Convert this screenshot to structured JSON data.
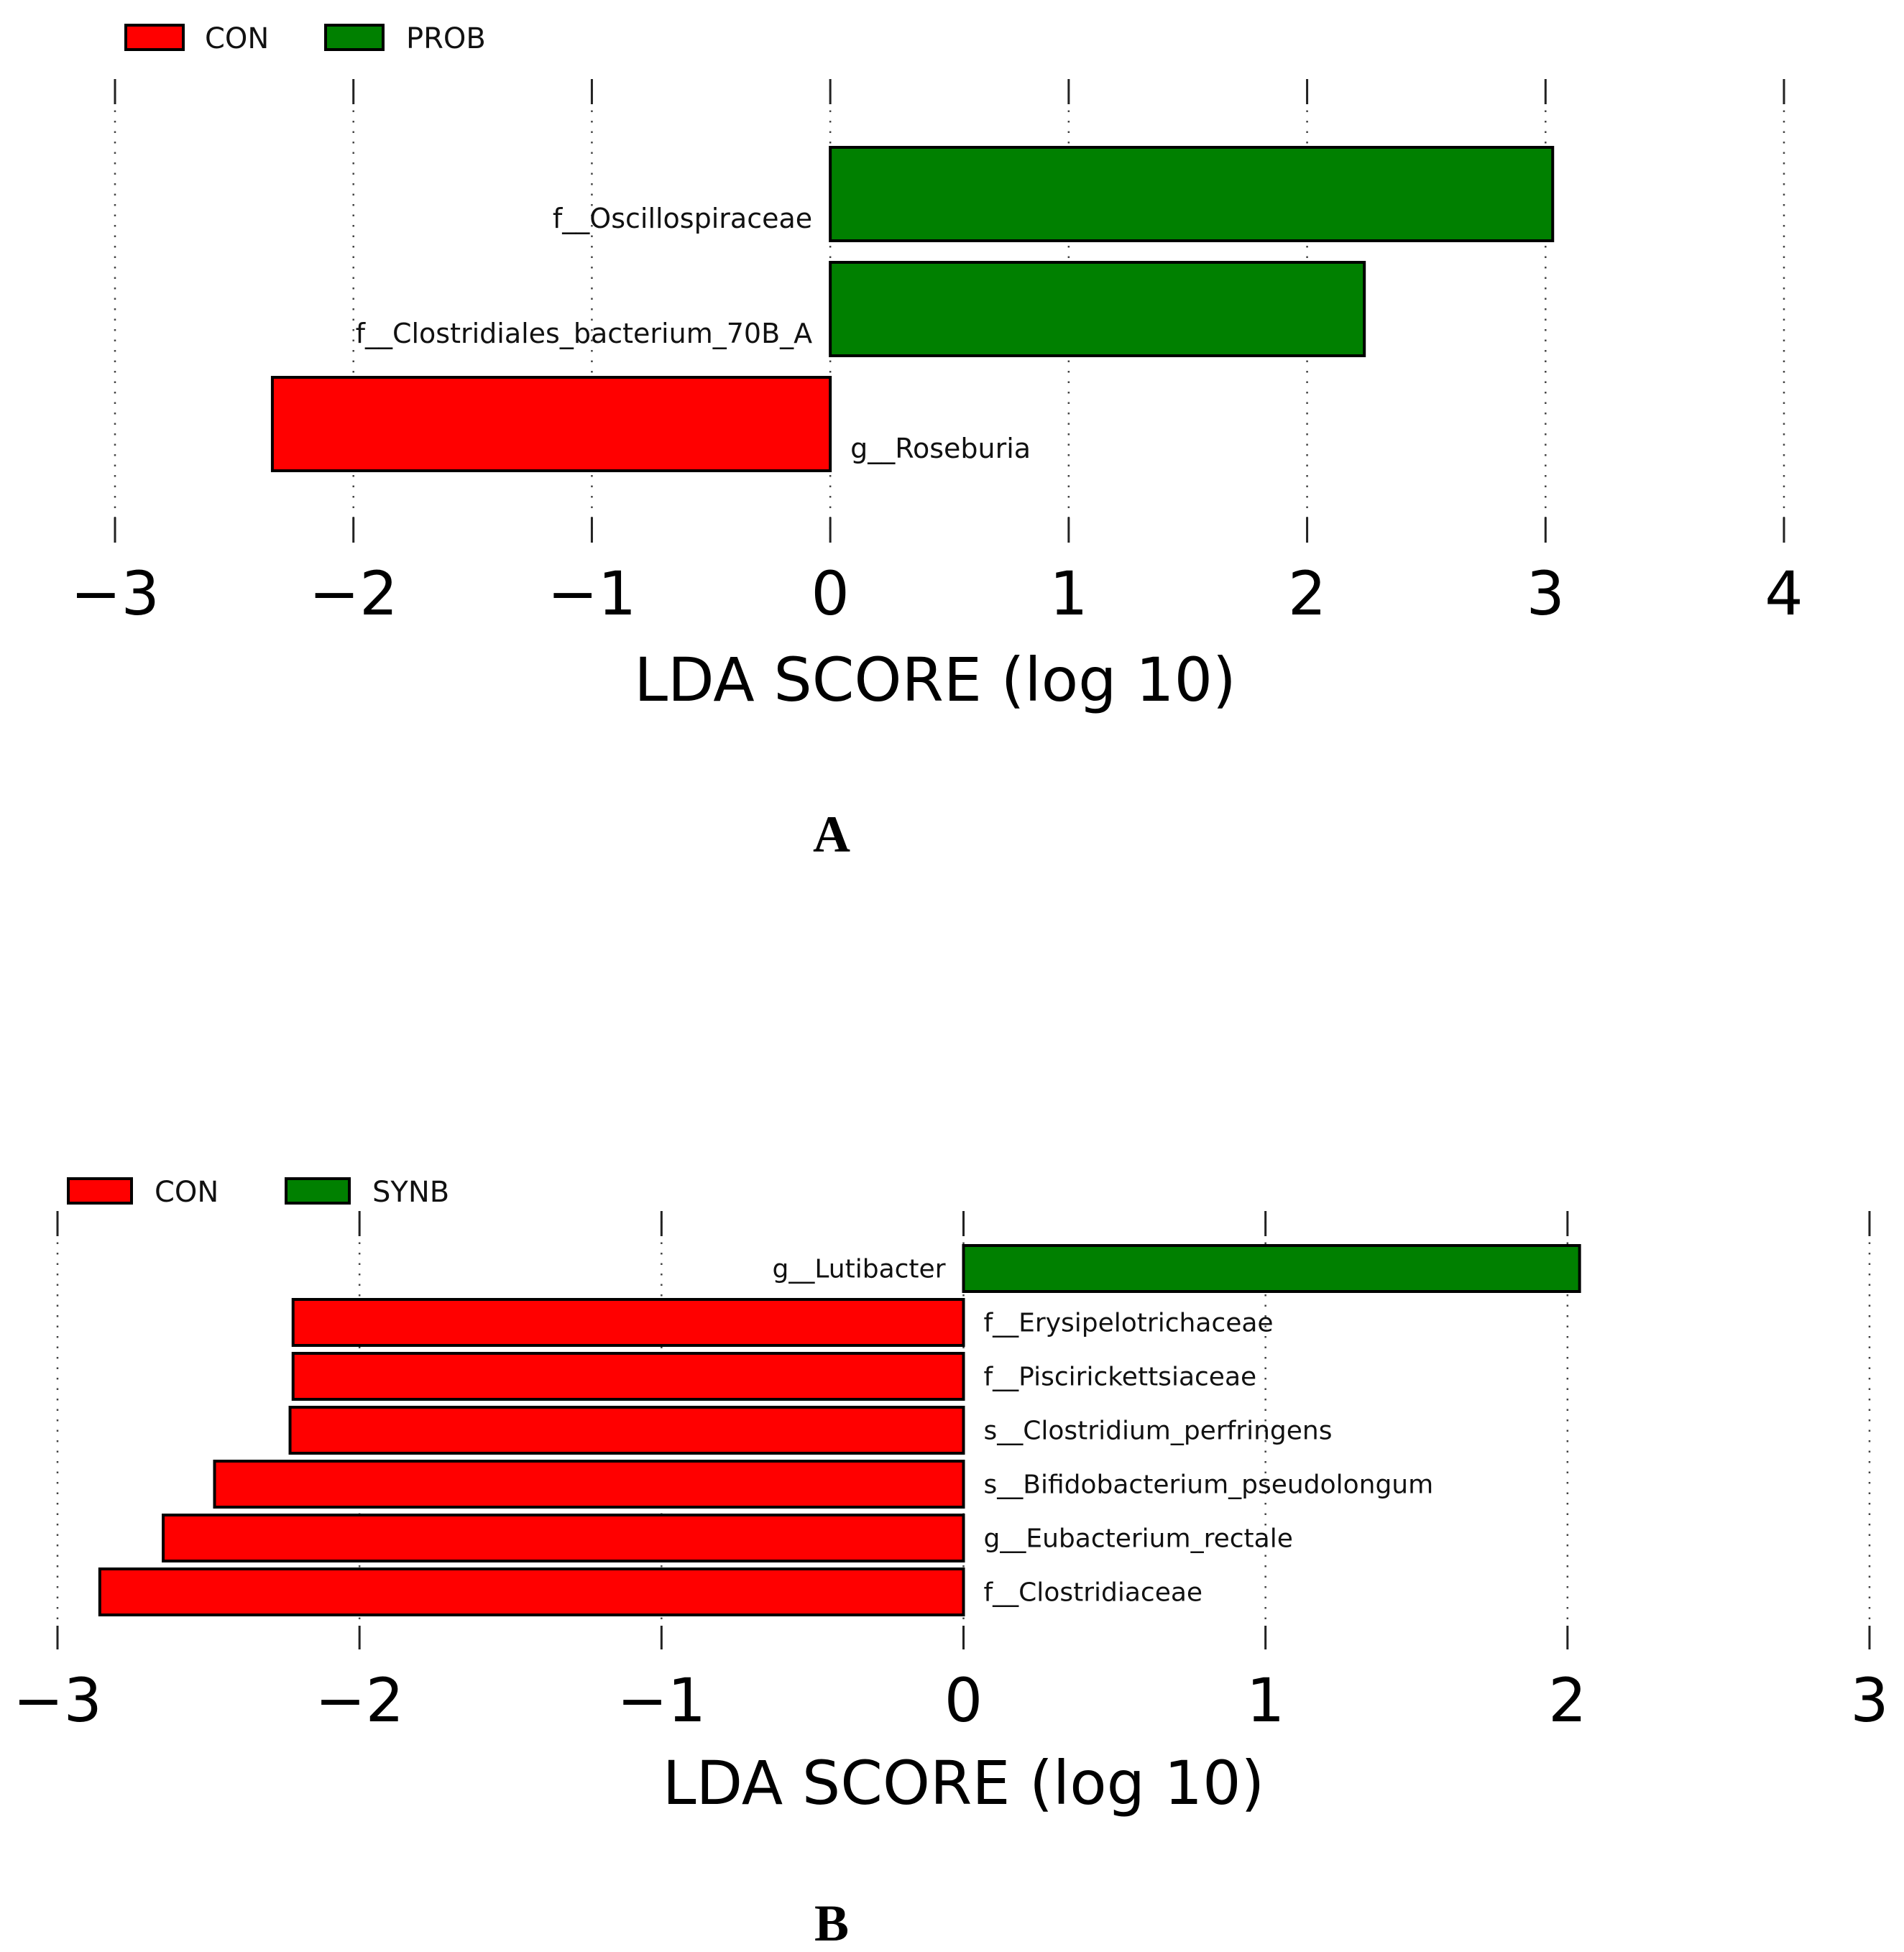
{
  "chart_data": [
    {
      "type": "bar",
      "orientation": "horizontal",
      "panel_label": "A",
      "xlabel": "LDA SCORE (log 10)",
      "xlim": [
        -3,
        4
      ],
      "xticks": [
        -3,
        -2,
        -1,
        0,
        1,
        2,
        3,
        4
      ],
      "xtick_labels": [
        "−3",
        "−2",
        "−1",
        "0",
        "1",
        "2",
        "3",
        "4"
      ],
      "grid": "vertical dotted",
      "legend": [
        {
          "name": "CON",
          "color": "#ff0000"
        },
        {
          "name": "PROB",
          "color": "#008000"
        }
      ],
      "legend_position": "top-left",
      "bars": [
        {
          "label": "f__Oscillospiraceae",
          "value": 3.03,
          "group": "PROB"
        },
        {
          "label": "f__Clostridiales_bacterium_70B_A",
          "value": 2.24,
          "group": "PROB"
        },
        {
          "label": "g__Roseburia",
          "value": -2.34,
          "group": "CON"
        }
      ]
    },
    {
      "type": "bar",
      "orientation": "horizontal",
      "panel_label": "B",
      "xlabel": "LDA SCORE (log 10)",
      "xlim": [
        -3,
        3
      ],
      "xticks": [
        -3,
        -2,
        -1,
        0,
        1,
        2,
        3
      ],
      "xtick_labels": [
        "−3",
        "−2",
        "−1",
        "0",
        "1",
        "2",
        "3"
      ],
      "grid": "vertical dotted",
      "legend": [
        {
          "name": "CON",
          "color": "#ff0000"
        },
        {
          "name": "SYNB",
          "color": "#008000"
        }
      ],
      "legend_position": "top-left",
      "bars": [
        {
          "label": "g__Lutibacter",
          "value": 2.04,
          "group": "SYNB"
        },
        {
          "label": "f__Erysipelotrichaceae",
          "value": -2.22,
          "group": "CON"
        },
        {
          "label": "f__Piscirickettsiaceae",
          "value": -2.22,
          "group": "CON"
        },
        {
          "label": "s__Clostridium_perfringens",
          "value": -2.23,
          "group": "CON"
        },
        {
          "label": "s__Bifidobacterium_pseudolongum",
          "value": -2.48,
          "group": "CON"
        },
        {
          "label": "g__Eubacterium_rectale",
          "value": -2.65,
          "group": "CON"
        },
        {
          "label": "f__Clostridiaceae",
          "value": -2.86,
          "group": "CON"
        }
      ]
    }
  ]
}
